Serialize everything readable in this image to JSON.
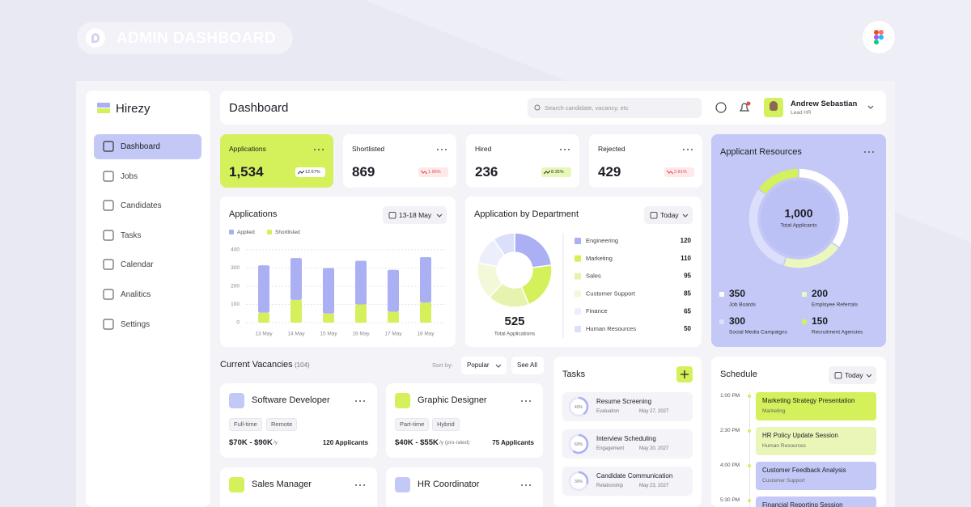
{
  "banner": {
    "title": "ADMIN DASHBOARD"
  },
  "sidebar": {
    "brand": "Hirezy",
    "nav": [
      "Dashboard",
      "Jobs",
      "Candidates",
      "Tasks",
      "Calendar",
      "Analitics",
      "Settings"
    ],
    "active": 0
  },
  "header": {
    "title": "Dashboard",
    "search_placeholder": "Search candidate, vacancy, etc",
    "user_name": "Andrew Sebastian",
    "user_role": "Lead HR"
  },
  "stats": [
    {
      "label": "Applications",
      "value": "1,534",
      "change": "12.67%",
      "trend": "up",
      "color": "#d4f05a"
    },
    {
      "label": "Shortlisted",
      "value": "869",
      "change": "1.95%",
      "trend": "down",
      "color": "#ffffff"
    },
    {
      "label": "Hired",
      "value": "236",
      "change": "8.35%",
      "trend": "up",
      "color": "#ffffff"
    },
    {
      "label": "Rejected",
      "value": "429",
      "change": "2.81%",
      "trend": "down",
      "color": "#ffffff"
    }
  ],
  "applications_chart": {
    "type": "bar",
    "stacked": true,
    "title": "Applications",
    "range": "13-18 May",
    "categories": [
      "13 May",
      "14 May",
      "15 May",
      "16 May",
      "17 May",
      "18 May"
    ],
    "series": [
      {
        "name": "Applied",
        "color": "#aab0f3",
        "values": [
          260,
          230,
          250,
          240,
          230,
          250
        ]
      },
      {
        "name": "Shortlisted",
        "color": "#d4f05a",
        "values": [
          55,
          125,
          50,
          100,
          60,
          110
        ]
      }
    ],
    "ylim": [
      0,
      400
    ],
    "yticks": [
      0,
      100,
      200,
      300,
      400
    ],
    "grid": true
  },
  "department_chart": {
    "type": "donut",
    "title": "Application by Department",
    "range": "Today",
    "total": 525,
    "total_label": "Total Applications",
    "categories": [
      "Engineering",
      "Marketing",
      "Sales",
      "Customer Support",
      "Finance",
      "Human Resources"
    ],
    "values": [
      120,
      110,
      95,
      85,
      65,
      50
    ],
    "colors": [
      "#aab0f3",
      "#d4f05a",
      "#e6f3ae",
      "#f3f8d8",
      "#eceefb",
      "#dcdffa"
    ]
  },
  "resources_chart": {
    "type": "donut",
    "title": "Applicant Resources",
    "total": "1,000",
    "total_label": "Total Applicants",
    "categories": [
      "Job Boards",
      "Employee Referrals",
      "Social Media Campaigns",
      "Recruitment Agencies"
    ],
    "values": [
      350,
      200,
      300,
      150
    ],
    "colors": [
      "#ffffff",
      "#ebf7bd",
      "#dcdffb",
      "#d4f05a"
    ]
  },
  "vacancies": {
    "title": "Current Vacancies",
    "count": "(104)",
    "sort_label": "Sort by:",
    "sort_value": "Popular",
    "see_all": "See All",
    "jobs": [
      {
        "title": "Software Developer",
        "tags": [
          "Full-time",
          "Remote"
        ],
        "salary": "$70K - $90K",
        "period": "/y",
        "applicants": "120 Applicants",
        "color": "#c4c8f6"
      },
      {
        "title": "Graphic Designer",
        "tags": [
          "Part-time",
          "Hybrid"
        ],
        "salary": "$40K - $55K",
        "period": "/y (pro-rated)",
        "applicants": "75 Applicants",
        "color": "#d4f05a"
      },
      {
        "title": "Sales Manager",
        "color": "#d4f05a"
      },
      {
        "title": "HR Coordinator",
        "color": "#c4c8f6"
      }
    ]
  },
  "tasks": {
    "title": "Tasks",
    "items": [
      {
        "title": "Resume Screening",
        "category": "Evaluation",
        "date": "May 27, 2027",
        "progress": 40,
        "progress_label": "40%"
      },
      {
        "title": "Interview Scheduling",
        "category": "Engagement",
        "date": "May 20, 2027",
        "progress": 60,
        "progress_label": "60%"
      },
      {
        "title": "Candidate Communication",
        "category": "Relationship",
        "date": "May 23, 2027",
        "progress": 30,
        "progress_label": "30%"
      }
    ]
  },
  "schedule": {
    "title": "Schedule",
    "range": "Today",
    "events": [
      {
        "time": "1:00 PM",
        "title": "Marketing Strategy Presentation",
        "category": "Marketing",
        "color": "#d4f05a"
      },
      {
        "time": "2:30 PM",
        "title": "HR Policy Update Session",
        "category": "Human Resources",
        "color": "#eaf6b8"
      },
      {
        "time": "4:00 PM",
        "title": "Customer Feedback Analysis",
        "category": "Customer Support",
        "color": "#c4c8f6"
      },
      {
        "time": "5:30 PM",
        "title": "Financial Reporting Session",
        "color": "#c4c8f6"
      }
    ]
  }
}
